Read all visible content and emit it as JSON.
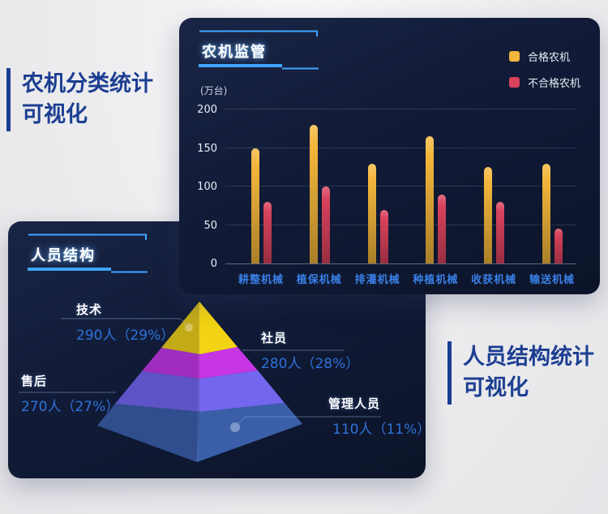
{
  "captions": {
    "left": {
      "line1": "农机分类统计",
      "line2": "可视化"
    },
    "right": {
      "line1": "人员结构统计",
      "line2": "可视化"
    }
  },
  "machinery_panel": {
    "title": "农机监管",
    "unit_label": "(万台)",
    "legend": [
      {
        "label": "合格农机",
        "color": "#f3b63b"
      },
      {
        "label": "不合格农机",
        "color": "#d9425c"
      }
    ]
  },
  "personnel_panel": {
    "title": "人员结构",
    "layers": [
      {
        "name": "技术",
        "value": "290人（29%）",
        "color": "#f2d414"
      },
      {
        "name": "社员",
        "value": "280人（28%）",
        "color": "#c636e4"
      },
      {
        "name": "售后",
        "value": "270人（27%）",
        "color": "#7466ef"
      },
      {
        "name": "管理人员",
        "value": "110人（11%）",
        "color": "#3a5fa8"
      }
    ]
  },
  "chart_data": [
    {
      "type": "bar",
      "title": "农机监管",
      "ylabel": "(万台)",
      "categories": [
        "耕整机械",
        "植保机械",
        "排灌机械",
        "种植机械",
        "收获机械",
        "输送机械"
      ],
      "series": [
        {
          "name": "合格农机",
          "color": "#f3b63b",
          "values": [
            150,
            180,
            130,
            165,
            125,
            130
          ]
        },
        {
          "name": "不合格农机",
          "color": "#d9425c",
          "values": [
            80,
            100,
            70,
            90,
            80,
            45
          ]
        }
      ],
      "ylim": [
        0,
        200
      ],
      "yticks": [
        0,
        50,
        100,
        150,
        200
      ],
      "grid": true,
      "legend_position": "top-right"
    },
    {
      "type": "pyramid",
      "title": "人员结构",
      "labels": [
        "技术",
        "社员",
        "售后",
        "管理人员"
      ],
      "values": [
        290,
        280,
        270,
        110
      ],
      "percentages": [
        29,
        28,
        27,
        11
      ],
      "unit": "人",
      "colors": [
        "#f2d414",
        "#c636e4",
        "#7466ef",
        "#3a5fa8"
      ],
      "order": "top-to-bottom"
    }
  ]
}
